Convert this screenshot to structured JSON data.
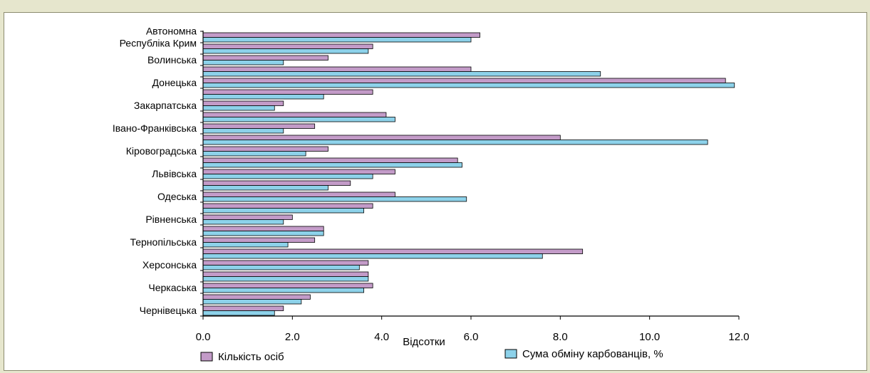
{
  "chart_data": {
    "type": "bar",
    "orientation": "horizontal",
    "title": "",
    "xlabel": "Відсотки",
    "ylabel": "",
    "xlim": [
      0,
      12
    ],
    "x_ticks": [
      "0.0",
      "2.0",
      "4.0",
      "6.0",
      "8.0",
      "10.0",
      "12.0"
    ],
    "grid": false,
    "legend_position": "bottom",
    "colors": {
      "series1": "#c39bc8",
      "series2": "#8dd2ea",
      "outline": "#000000"
    },
    "categories": [
      "",
      "",
      "",
      "",
      "",
      "",
      "",
      "",
      "",
      "",
      "",
      "",
      "",
      "",
      "",
      "",
      "",
      "",
      "",
      "",
      "",
      "",
      "",
      "",
      ""
    ],
    "labeled_categories": [
      {
        "index": 0,
        "lines": [
          "Автономна",
          "Республіка Крим"
        ]
      },
      {
        "index": 2,
        "lines": [
          "Волинська"
        ]
      },
      {
        "index": 4,
        "lines": [
          "Донецька"
        ]
      },
      {
        "index": 6,
        "lines": [
          "Закарпатська"
        ]
      },
      {
        "index": 8,
        "lines": [
          "Івано-Франківська"
        ]
      },
      {
        "index": 10,
        "lines": [
          "Кіровоградська"
        ]
      },
      {
        "index": 12,
        "lines": [
          "Львівська"
        ]
      },
      {
        "index": 14,
        "lines": [
          "Одеська"
        ]
      },
      {
        "index": 16,
        "lines": [
          "Рівненська"
        ]
      },
      {
        "index": 18,
        "lines": [
          "Тернопільська"
        ]
      },
      {
        "index": 20,
        "lines": [
          "Херсонська"
        ]
      },
      {
        "index": 22,
        "lines": [
          "Черкаська"
        ]
      },
      {
        "index": 24,
        "lines": [
          "Чернівецька"
        ]
      }
    ],
    "series": [
      {
        "name": "Кількість осіб",
        "values": [
          6.2,
          3.8,
          2.8,
          6.0,
          11.7,
          3.8,
          1.8,
          4.1,
          2.5,
          8.0,
          2.8,
          5.7,
          4.3,
          3.3,
          4.3,
          3.8,
          2.0,
          2.7,
          2.5,
          8.5,
          3.7,
          3.7,
          3.8,
          2.4,
          1.8
        ]
      },
      {
        "name": "Сума обміну карбованців, %",
        "values": [
          6.0,
          3.7,
          1.8,
          8.9,
          11.9,
          2.7,
          1.6,
          4.3,
          1.8,
          11.3,
          2.3,
          5.8,
          3.8,
          2.8,
          5.9,
          3.6,
          1.8,
          2.7,
          1.9,
          7.6,
          3.5,
          3.7,
          3.6,
          2.2,
          1.6
        ]
      }
    ]
  }
}
